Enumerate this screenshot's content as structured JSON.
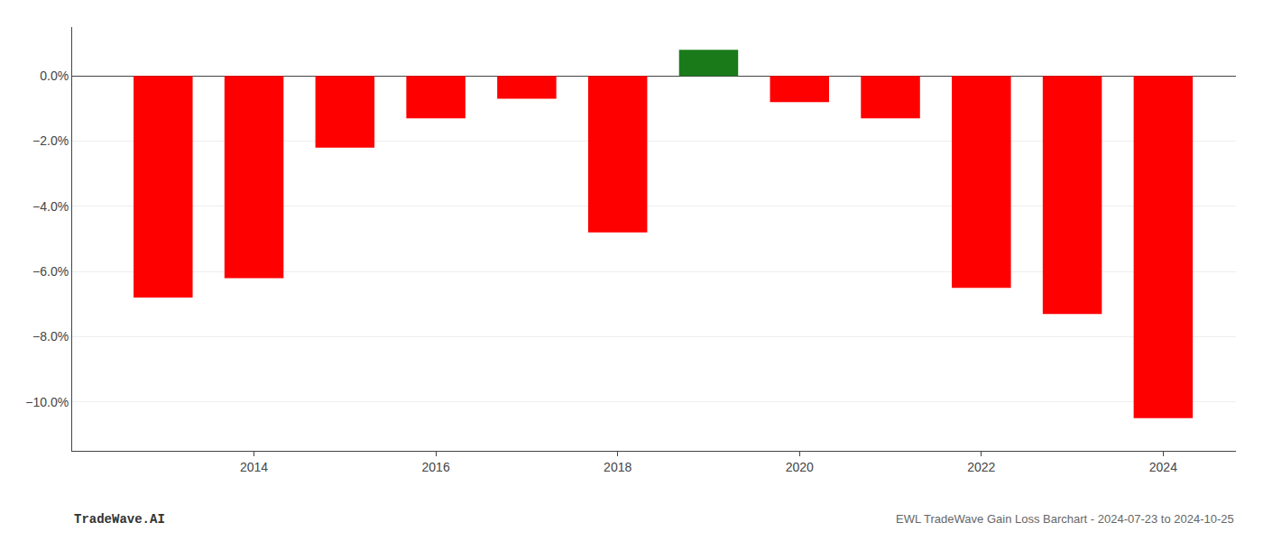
{
  "chart_data": {
    "type": "bar",
    "x": [
      2013,
      2014,
      2015,
      2016,
      2017,
      2018,
      2019,
      2020,
      2021,
      2022,
      2023,
      2024
    ],
    "values": [
      -6.8,
      -6.2,
      -2.2,
      -1.3,
      -0.7,
      -4.8,
      0.8,
      -0.8,
      -1.3,
      -6.5,
      -7.3,
      -10.5
    ],
    "colors": [
      "#ff0000",
      "#ff0000",
      "#ff0000",
      "#ff0000",
      "#ff0000",
      "#ff0000",
      "#1a7a1a",
      "#ff0000",
      "#ff0000",
      "#ff0000",
      "#ff0000",
      "#ff0000"
    ],
    "xlim": [
      2012,
      2024.8
    ],
    "xticks": [
      2014,
      2016,
      2018,
      2020,
      2022,
      2024
    ],
    "ylim": [
      -11.5,
      1.5
    ],
    "yticks": [
      {
        "value": 0.0,
        "label": "0.0%"
      },
      {
        "value": -2.0,
        "label": "−2.0%"
      },
      {
        "value": -4.0,
        "label": "−4.0%"
      },
      {
        "value": -6.0,
        "label": "−6.0%"
      },
      {
        "value": -8.0,
        "label": "−8.0%"
      },
      {
        "value": -10.0,
        "label": "−10.0%"
      }
    ],
    "grid": true,
    "annotations": [
      "TradeWave.AI",
      "EWL TradeWave Gain Loss Barchart - 2024-07-23 to 2024-10-25"
    ]
  }
}
